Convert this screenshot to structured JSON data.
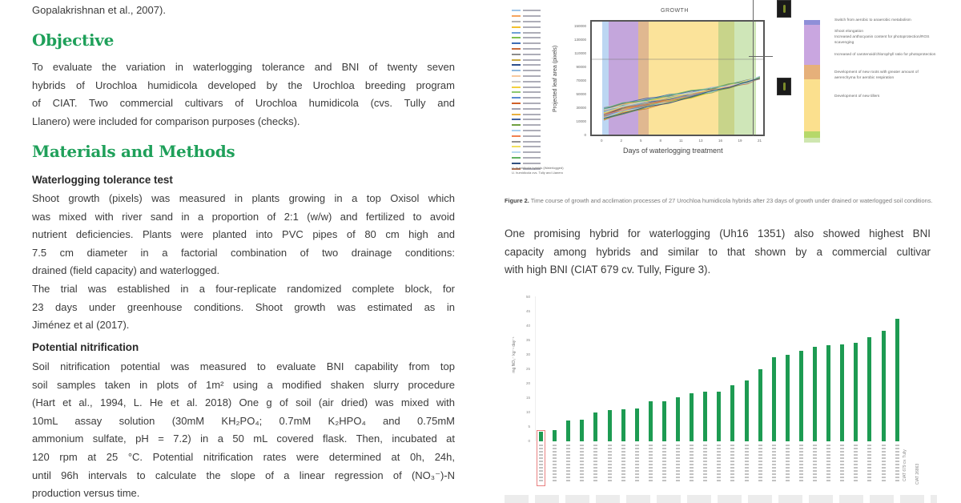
{
  "left_column": {
    "top_fragment": "Gopalakrishnan et al., 2007).",
    "objective": {
      "heading": "Objective",
      "text_lines": [
        "To evaluate the variation in waterlogging tolerance and BNI of twenty seven",
        "hybrids of Urochloa humidicola developed by the Urochloa breeding program",
        "of CIAT. Two commercial cultivars of Urochloa humidicola (cvs. Tully and",
        "Llanero) were included for comparison purposes (checks)."
      ]
    },
    "methods": {
      "heading": "Materials and Methods",
      "subsections": [
        {
          "title": "Waterlogging tolerance test",
          "paragraphs": [
            [
              "Shoot growth (pixels) was measured in plants growing in a top Oxisol which",
              "was mixed with river sand in a proportion of 2:1 (w/w) and fertilized to avoid",
              "nutrient deficiencies. Plants were planted into PVC pipes of 80 cm high and",
              "7.5 cm diameter in a factorial combination of two drainage conditions:",
              "drained (field capacity) and waterlogged."
            ],
            [
              "The trial was established in a four-replicate randomized complete block, for",
              "23 days under greenhouse conditions. Shoot growth was estimated as in",
              "Jiménez et al (2017)."
            ]
          ]
        },
        {
          "title": "Potential nitrification",
          "paragraphs": [
            [
              "Soil nitrification potential was measured to evaluate BNI capability from top",
              "soil samples taken in plots of 1m² using a modified shaken slurry procedure",
              "(Hart et al., 1994, L. He et al. 2018) One g of soil (air dried) was mixed with",
              "10mL assay solution (30mM KH₂PO₄; 0.7mM K₂HPO₄ and 0.75mM",
              "ammonium sulfate, pH = 7.2) in a 50 mL covered flask. Then, incubated at",
              "120 rpm at 25 °C. Potential nitrification rates were determined at 0h, 24h,",
              "until 96h intervals to calculate the slope of a linear regression of (NO₃⁻)-N",
              "production versus time."
            ]
          ]
        }
      ]
    }
  },
  "right_column": {
    "figure2": {
      "chart_title": "GROWTH",
      "y_title": "Projected leaf area (pixels)",
      "x_title": "Days of waterlogging treatment",
      "y_ticks": [
        "150000",
        "130000",
        "110000",
        "90000",
        "70000",
        "50000",
        "30000",
        "10000",
        "0"
      ],
      "x_ticks": [
        "0",
        "2",
        "5",
        "8",
        "11",
        "13",
        "16",
        "19",
        "21"
      ],
      "legend_colors": [
        "#9ec5e8",
        "#f4a460",
        "#b0b0b0",
        "#f2c12e",
        "#6fa0d6",
        "#7fbf4f",
        "#3d6db5",
        "#c86a3a",
        "#8c8c8c",
        "#c8a840",
        "#2e4f8c",
        "#8fb8de",
        "#f6c8a0",
        "#c8c8c8",
        "#f2d040",
        "#8cc870",
        "#5a8ad0",
        "#d0602a",
        "#a0a0b0",
        "#e8b040",
        "#4060a0",
        "#70a040",
        "#a8d0f0",
        "#f08050",
        "#909090",
        "#f0e060",
        "#b8d8f0",
        "#60b060",
        "#305080",
        "#b07050"
      ],
      "footnotes": [
        "U. humidicola hybrids (Waterlogged)",
        "U. humidicola cvs. Tully and Llanero"
      ],
      "bands": [
        {
          "color": "#bcd6f2",
          "from": 0.06,
          "to": 0.1
        },
        {
          "color": "#c4a6dc",
          "from": 0.1,
          "to": 0.27
        },
        {
          "color": "#e0b890",
          "from": 0.27,
          "to": 0.33
        },
        {
          "color": "#fbe39a",
          "from": 0.33,
          "to": 0.74
        },
        {
          "color": "#c8d48a",
          "from": 0.74,
          "to": 0.83
        },
        {
          "color": "#cfe6b8",
          "from": 0.83,
          "to": 0.96
        }
      ],
      "stage_notes": [
        "Switch from aerobic to anaerobic metabolism",
        "Shoot elongation",
        "Increased anthocyanin content for photoprotection/ROS scavenging",
        "Increased of carotenoid/chlorophyll ratio for photoprotection",
        "Development of new roots with greater amount of aerenchyma for aerobic respiration",
        "Development of new tillers"
      ],
      "caption_label": "Figure 2.",
      "caption_text": "Time course of growth and acclimation processes of 27 Urochloa humidicola hybrids after 23 days of growth under drained or waterlogged soil conditions."
    },
    "paragraph_lines": [
      "One promising hybrid for waterlogging (Uh16 1351) also showed highest BNI",
      "capacity among hybrids and similar to that shown by a commercial cultivar",
      "with high BNI (CIAT 679 cv. Tully, Figure 3)."
    ],
    "figure3": {
      "y_title": "mg NO₃⁻ kg⁻¹ day⁻¹",
      "check_labels": [
        "CIAT 679 cv. Tully",
        "CIAT 26863"
      ],
      "highlight_color": "#e88080",
      "bar_color": "#1d9b52"
    }
  },
  "chart_data": [
    {
      "type": "line",
      "title": "GROWTH",
      "xlabel": "Days of waterlogging treatment",
      "ylabel": "Projected leaf area (pixels)",
      "x": [
        0,
        2,
        5,
        8,
        11,
        13,
        16,
        19,
        21
      ],
      "ylim": [
        0,
        150000
      ],
      "series_count": 29,
      "series_summary": "29 ascending lines (27 U. humidicola hybrids + 2 checks) rising from ~20000–40000 at day 0 to ~70000–130000 at day 21",
      "background_bands": [
        "light blue",
        "purple",
        "tan",
        "yellow",
        "olive",
        "light green"
      ],
      "reference_line_y": 100000,
      "legend_position": "left"
    },
    {
      "type": "bar",
      "title": "",
      "xlabel": "",
      "ylabel": "mg NO₃⁻ kg⁻¹ day⁻¹",
      "ylim": [
        0,
        50
      ],
      "y_ticks": [
        0,
        5,
        10,
        15,
        20,
        25,
        30,
        35,
        40,
        45,
        50
      ],
      "categories_count": 27,
      "values": [
        3.3,
        4.0,
        7.1,
        7.4,
        10.0,
        10.7,
        11.2,
        11.4,
        13.8,
        13.8,
        15.2,
        16.6,
        17.1,
        17.1,
        19.4,
        21.2,
        25.0,
        29.3,
        30.1,
        31.5,
        32.9,
        33.2,
        33.6,
        34.2,
        36.1,
        38.3,
        42.6
      ],
      "highlighted_index": 0,
      "check_labels": [
        "CIAT 679 cv. Tully",
        "CIAT 26863"
      ],
      "grid": false
    }
  ]
}
